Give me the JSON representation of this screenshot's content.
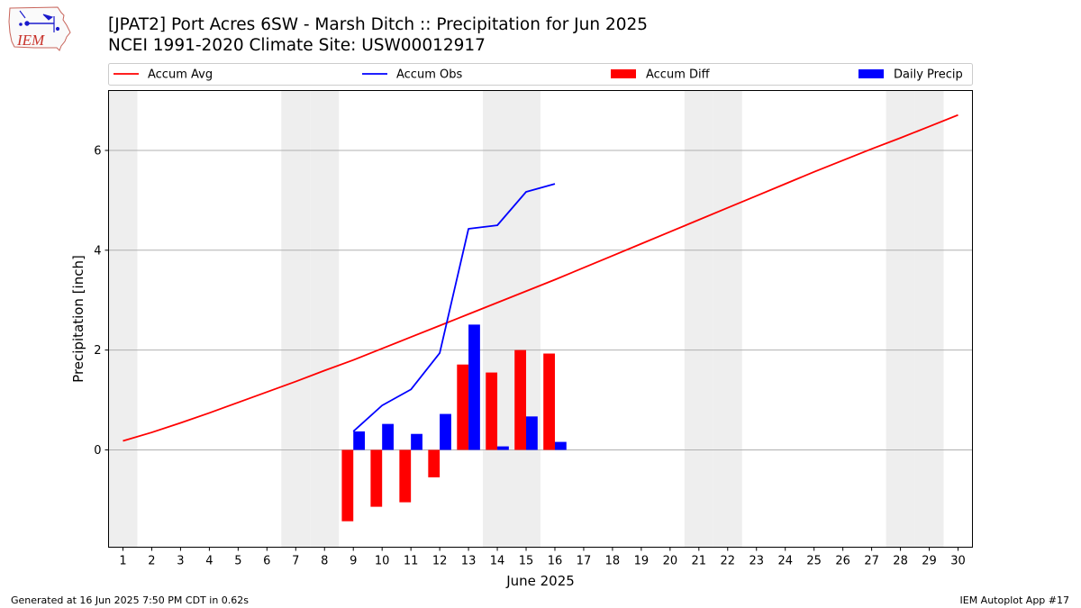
{
  "header": {
    "title_line1": "[JPAT2] Port Acres 6SW - Marsh Ditch :: Precipitation for Jun 2025",
    "title_line2": "NCEI 1991-2020 Climate Site: USW00012917",
    "logo_text": "IEM"
  },
  "footer": {
    "generated": "Generated at 16 Jun 2025 7:50 PM CDT in 0.62s",
    "app": "IEM Autoplot App #17"
  },
  "colors": {
    "avg": "#ff0000",
    "obs": "#0000ff",
    "diff": "#ff0000",
    "daily": "#0000ff",
    "weekend_band": "#eeeeee",
    "grid": "#b0b0b0"
  },
  "chart_data": {
    "type": "bar",
    "xlabel": "June 2025",
    "ylabel": "Precipitation [inch]",
    "xlim": [
      0.5,
      30.5
    ],
    "ylim": [
      -1.95,
      7.2
    ],
    "y_ticks": [
      0,
      2,
      4,
      6
    ],
    "grid": "horizontal",
    "legend_placement": "top",
    "x_ticks": [
      1,
      2,
      3,
      4,
      5,
      6,
      7,
      8,
      9,
      10,
      11,
      12,
      13,
      14,
      15,
      16,
      17,
      18,
      19,
      20,
      21,
      22,
      23,
      24,
      25,
      26,
      27,
      28,
      29,
      30
    ],
    "weekend_days": [
      1,
      7,
      8,
      14,
      15,
      21,
      22,
      28,
      29
    ],
    "legend": [
      "Accum Avg",
      "Accum Obs",
      "Accum Diff",
      "Daily Precip"
    ],
    "series": [
      {
        "name": "Accum Avg",
        "kind": "line",
        "x": [
          1,
          2,
          3,
          4,
          5,
          6,
          7,
          8,
          9,
          10,
          11,
          12,
          13,
          14,
          15,
          16,
          17,
          18,
          19,
          20,
          21,
          22,
          23,
          24,
          25,
          26,
          27,
          28,
          29,
          30
        ],
        "values": [
          0.18,
          0.35,
          0.54,
          0.74,
          0.95,
          1.16,
          1.37,
          1.59,
          1.8,
          2.03,
          2.26,
          2.49,
          2.72,
          2.95,
          3.18,
          3.41,
          3.65,
          3.89,
          4.13,
          4.37,
          4.61,
          4.85,
          5.09,
          5.33,
          5.57,
          5.8,
          6.03,
          6.25,
          6.48,
          6.71
        ]
      },
      {
        "name": "Accum Obs",
        "kind": "line",
        "x": [
          9,
          10,
          11,
          12,
          13,
          14,
          15,
          16
        ],
        "values": [
          0.37,
          0.89,
          1.21,
          1.94,
          4.43,
          4.5,
          5.17,
          5.33
        ]
      },
      {
        "name": "Accum Diff",
        "kind": "bar",
        "x": [
          9,
          10,
          11,
          12,
          13,
          14,
          15,
          16
        ],
        "values": [
          -1.43,
          -1.14,
          -1.05,
          -0.55,
          1.71,
          1.55,
          2.0,
          1.93
        ]
      },
      {
        "name": "Daily Precip",
        "kind": "bar",
        "x": [
          9,
          10,
          11,
          12,
          13,
          14,
          15,
          16
        ],
        "values": [
          0.37,
          0.52,
          0.32,
          0.72,
          2.51,
          0.07,
          0.67,
          0.16
        ]
      }
    ]
  }
}
